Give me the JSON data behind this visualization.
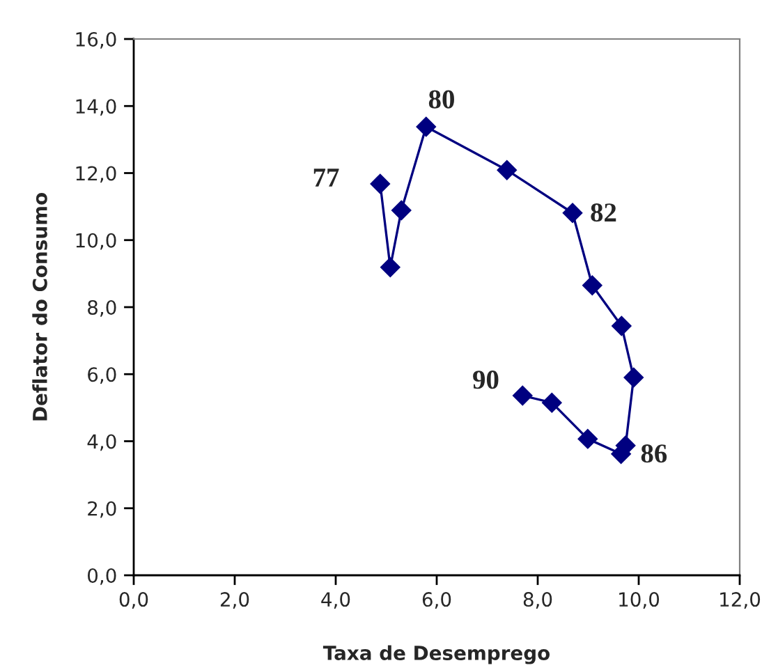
{
  "chart_data": {
    "type": "line",
    "xlabel": "Taxa de Desemprego",
    "ylabel": "Deflator do Consumo",
    "x": [
      4.88,
      5.08,
      5.3,
      5.79,
      7.39,
      8.69,
      9.08,
      9.66,
      9.9,
      9.74,
      9.65,
      8.99,
      8.28,
      7.7
    ],
    "series": [
      {
        "color": "#000080",
        "values": [
          11.68,
          9.19,
          10.89,
          13.38,
          12.09,
          10.81,
          8.65,
          7.44,
          5.9,
          3.87,
          3.62,
          4.07,
          5.15,
          5.36
        ]
      }
    ],
    "marker": "diamond",
    "line_style": "solid",
    "grid": false,
    "legend": false,
    "xlim": [
      0,
      12
    ],
    "ylim": [
      0,
      16
    ],
    "xticks": [
      {
        "value": 0,
        "label": "0,0"
      },
      {
        "value": 2,
        "label": "2,0"
      },
      {
        "value": 4,
        "label": "4,0"
      },
      {
        "value": 6,
        "label": "6,0"
      },
      {
        "value": 8,
        "label": "8,0"
      },
      {
        "value": 10,
        "label": "10,0"
      },
      {
        "value": 12,
        "label": "12,0"
      }
    ],
    "yticks": [
      {
        "value": 0,
        "label": "0,0"
      },
      {
        "value": 2,
        "label": "2,0"
      },
      {
        "value": 4,
        "label": "4,0"
      },
      {
        "value": 6,
        "label": "6,0"
      },
      {
        "value": 8,
        "label": "8,0"
      },
      {
        "value": 10,
        "label": "10,0"
      },
      {
        "value": 12,
        "label": "12,0"
      },
      {
        "value": 14,
        "label": "14,0"
      },
      {
        "value": 16,
        "label": "16,0"
      }
    ],
    "annotations": [
      {
        "text": "77",
        "x": 4.88,
        "y": 11.68
      },
      {
        "text": "80",
        "x": 5.79,
        "y": 13.38
      },
      {
        "text": "82",
        "x": 8.69,
        "y": 10.81
      },
      {
        "text": "86",
        "x": 9.65,
        "y": 3.62
      },
      {
        "text": "90",
        "x": 7.7,
        "y": 5.36
      }
    ]
  }
}
